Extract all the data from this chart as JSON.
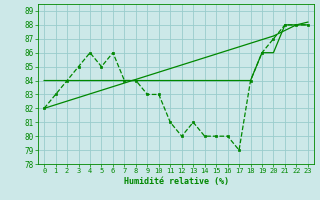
{
  "xlabel": "Humidité relative (%)",
  "bg_color": "#cce8e8",
  "grid_color": "#99cccc",
  "line_color": "#008800",
  "xlim": [
    -0.5,
    23.5
  ],
  "ylim": [
    78,
    89.5
  ],
  "yticks": [
    78,
    79,
    80,
    81,
    82,
    83,
    84,
    85,
    86,
    87,
    88,
    89
  ],
  "xticks": [
    0,
    1,
    2,
    3,
    4,
    5,
    6,
    7,
    8,
    9,
    10,
    11,
    12,
    13,
    14,
    15,
    16,
    17,
    18,
    19,
    20,
    21,
    22,
    23
  ],
  "data_main": [
    82,
    83,
    84,
    85,
    86,
    85,
    86,
    84,
    84,
    83,
    83,
    81,
    80,
    81,
    80,
    80,
    80,
    79,
    84,
    86,
    87,
    88,
    88,
    88
  ],
  "data_flat": [
    84,
    84,
    84,
    84,
    84,
    84,
    84,
    84,
    84,
    84,
    84,
    84,
    84,
    84,
    84,
    84,
    84,
    84,
    84,
    86,
    86,
    88,
    88,
    88
  ],
  "data_diag": [
    82,
    82.26,
    82.52,
    82.78,
    83.04,
    83.3,
    83.56,
    83.82,
    84.08,
    84.34,
    84.6,
    84.86,
    85.12,
    85.38,
    85.64,
    85.9,
    86.16,
    86.42,
    86.68,
    86.94,
    87.2,
    87.6,
    88.0,
    88.2
  ]
}
